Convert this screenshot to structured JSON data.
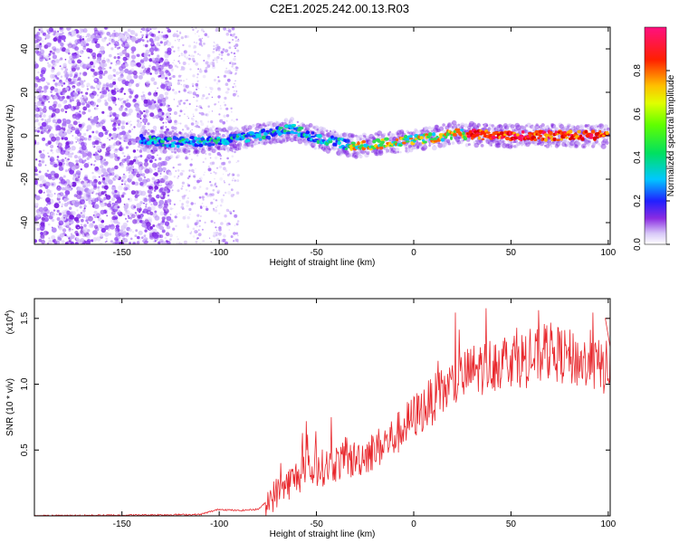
{
  "title": "C2E1.2025.242.00.13.R03",
  "colors": {
    "snr_line": "#e8282d",
    "background": "#ffffff",
    "axis": "#000000"
  },
  "chart_data": [
    {
      "type": "heatmap",
      "name": "spectrogram",
      "xlabel": "Height of straight line (km)",
      "ylabel": "Frequency (Hz)",
      "xlim": [
        -195,
        101
      ],
      "ylim": [
        -50,
        50
      ],
      "x_ticks": [
        -150,
        -100,
        -50,
        0,
        50,
        100
      ],
      "y_ticks": [
        -40,
        -20,
        0,
        20,
        40
      ],
      "ridge": [
        {
          "x": -140,
          "f": -2
        },
        {
          "x": -120,
          "f": -3
        },
        {
          "x": -100,
          "f": -2
        },
        {
          "x": -80,
          "f": 0
        },
        {
          "x": -62,
          "f": 3
        },
        {
          "x": -50,
          "f": -1
        },
        {
          "x": -30,
          "f": -5
        },
        {
          "x": -10,
          "f": -3
        },
        {
          "x": 10,
          "f": -1
        },
        {
          "x": 20,
          "f": 1
        },
        {
          "x": 40,
          "f": 0
        },
        {
          "x": 60,
          "f": 0
        },
        {
          "x": 80,
          "f": 0
        },
        {
          "x": 100,
          "f": 0
        }
      ],
      "colorbar": {
        "label": "Normalized spectral amplitude",
        "range": [
          0,
          1
        ],
        "ticks": [
          "0.0",
          "0.2",
          "0.4",
          "0.6",
          "0.8"
        ]
      }
    },
    {
      "type": "line",
      "name": "snr",
      "xlabel": "Height of straight line (km)",
      "ylabel": "SNR (10 * v/v)",
      "y_multiplier": "(x10",
      "y_multiplier_exp": "4",
      "xlim": [
        -195,
        101
      ],
      "ylim": [
        0,
        1.65
      ],
      "x_ticks": [
        -150,
        -100,
        -50,
        0,
        50,
        100
      ],
      "y_ticks": [
        "0.5",
        "1.0",
        "1.5"
      ],
      "envelope": [
        {
          "x": -195,
          "v": 0.0
        },
        {
          "x": -110,
          "v": 0.01
        },
        {
          "x": -100,
          "v": 0.05
        },
        {
          "x": -90,
          "v": 0.04
        },
        {
          "x": -80,
          "v": 0.05
        },
        {
          "x": -70,
          "v": 0.18
        },
        {
          "x": -60,
          "v": 0.3
        },
        {
          "x": -50,
          "v": 0.35
        },
        {
          "x": -40,
          "v": 0.4
        },
        {
          "x": -30,
          "v": 0.43
        },
        {
          "x": -20,
          "v": 0.5
        },
        {
          "x": -10,
          "v": 0.6
        },
        {
          "x": 0,
          "v": 0.75
        },
        {
          "x": 10,
          "v": 0.88
        },
        {
          "x": 20,
          "v": 1.0
        },
        {
          "x": 30,
          "v": 1.1
        },
        {
          "x": 40,
          "v": 1.15
        },
        {
          "x": 50,
          "v": 1.2
        },
        {
          "x": 60,
          "v": 1.18
        },
        {
          "x": 70,
          "v": 1.25
        },
        {
          "x": 80,
          "v": 1.2
        },
        {
          "x": 90,
          "v": 1.15
        },
        {
          "x": 100,
          "v": 1.12
        }
      ]
    }
  ]
}
